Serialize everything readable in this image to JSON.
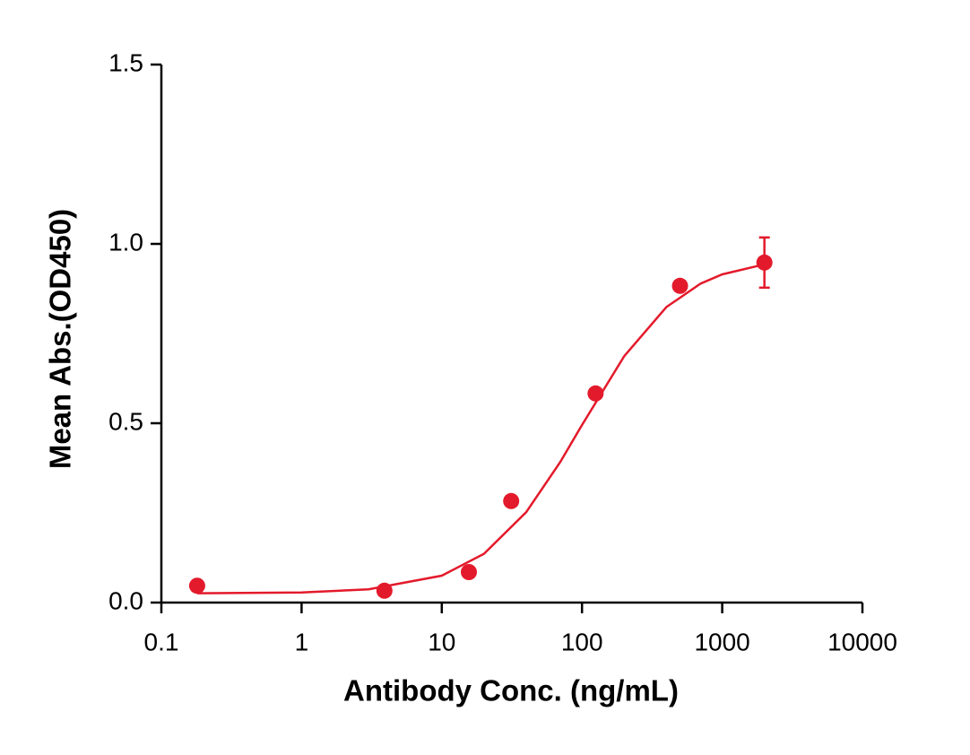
{
  "chart_data": {
    "type": "scatter",
    "y_label": "Mean Abs.(OD450)",
    "x_label": "Antibody Conc. (ng/mL)",
    "xscale": "log",
    "xlim": [
      0.1,
      10000
    ],
    "xticks": [
      0.1,
      1,
      10,
      100,
      1000,
      10000
    ],
    "ylim": [
      0,
      1.5
    ],
    "yticks": [
      {
        "value": 0,
        "label": "0.0"
      },
      0.5,
      {
        "value": 1,
        "label": "1.0"
      },
      {
        "value": 1.5,
        "label": "1.5"
      }
    ],
    "color": "#e31a2b",
    "points": {
      "x": [
        0.18,
        3.9,
        15.6,
        31.25,
        125,
        500,
        2000
      ],
      "values": [
        0.047,
        0.033,
        0.085,
        0.283,
        0.583,
        0.883,
        0.948
      ],
      "errors": [
        null,
        null,
        null,
        null,
        null,
        null,
        0.07
      ]
    },
    "fit": {
      "x": [
        0.18,
        1,
        3,
        10,
        20,
        40,
        70,
        100,
        200,
        400,
        700,
        1000,
        2000
      ],
      "values": [
        0.026,
        0.028,
        0.037,
        0.075,
        0.136,
        0.252,
        0.392,
        0.495,
        0.687,
        0.824,
        0.889,
        0.915,
        0.943
      ]
    }
  }
}
